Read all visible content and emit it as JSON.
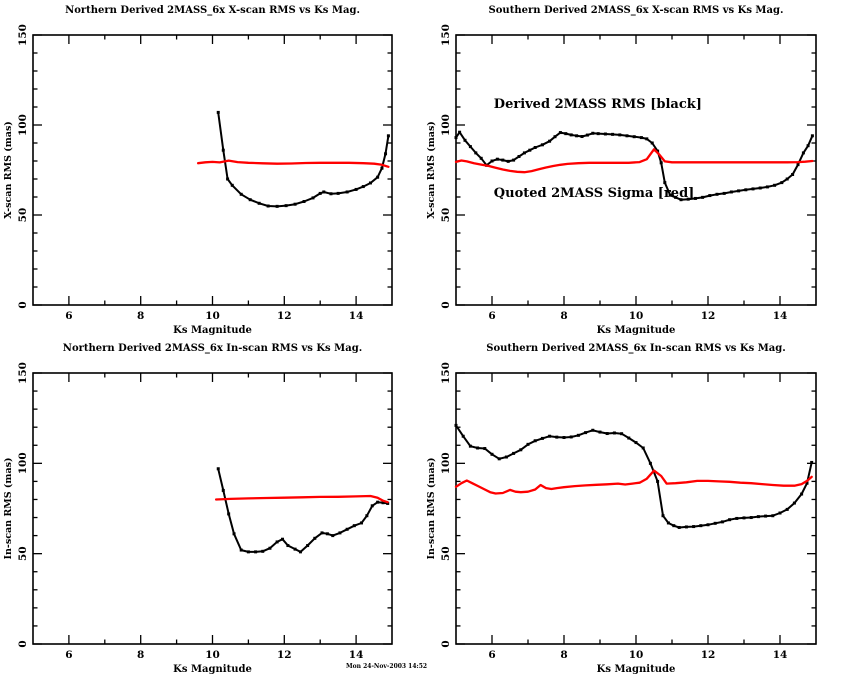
{
  "page": {
    "background": "#ffffff",
    "timestamp": "Mon 24-Nov-2003 14:52"
  },
  "legend": {
    "black_series_label": "Derived 2MASS RMS [black]",
    "red_series_label": "Quoted 2MASS Sigma [red]"
  },
  "colors": {
    "derived_rms": "#000000",
    "quoted_sigma": "#ff0000",
    "axis": "#000000"
  },
  "chart_data": [
    {
      "type": "line",
      "title": "Northern Derived 2MASS_6x X-scan RMS vs Ks Mag.",
      "xlabel": "Ks Magnitude",
      "ylabel": "X-scan RMS (mas)",
      "xlim": [
        5,
        15
      ],
      "ylim": [
        0,
        150
      ],
      "xticks": [
        6,
        8,
        10,
        12,
        14
      ],
      "xticks_minor": [
        7,
        9,
        11,
        13
      ],
      "yticks": [
        0,
        50,
        100,
        150
      ],
      "yticks_minor": [
        10,
        20,
        30,
        40,
        60,
        70,
        80,
        90,
        110,
        120,
        130,
        140
      ],
      "grid": false,
      "annotations": [],
      "series": [
        {
          "name": "Derived 2MASS RMS",
          "color": "#000000",
          "markers": true,
          "x": [
            10.16,
            10.3,
            10.42,
            10.55,
            10.8,
            11.05,
            11.3,
            11.55,
            11.8,
            12.05,
            12.3,
            12.55,
            12.8,
            13.0,
            13.1,
            13.3,
            13.5,
            13.75,
            14.0,
            14.2,
            14.4,
            14.6,
            14.72,
            14.82,
            14.9
          ],
          "y": [
            107,
            86,
            70,
            66.5,
            61.5,
            58.5,
            56.5,
            55,
            54.8,
            55.2,
            56,
            57.5,
            59.5,
            62,
            62.8,
            61.8,
            62,
            62.8,
            64.2,
            65.8,
            67.8,
            71,
            76,
            84,
            94
          ]
        },
        {
          "name": "Quoted 2MASS Sigma",
          "color": "#ff0000",
          "markers": false,
          "x": [
            9.6,
            9.8,
            10.0,
            10.2,
            10.45,
            10.7,
            11.0,
            11.4,
            11.8,
            12.2,
            12.6,
            13.0,
            13.4,
            13.8,
            14.2,
            14.5,
            14.7,
            14.9
          ],
          "y": [
            78.8,
            79.3,
            79.5,
            79.2,
            80.2,
            79.4,
            79,
            78.7,
            78.5,
            78.6,
            78.9,
            79,
            79,
            79,
            78.8,
            78.5,
            78,
            76.8
          ]
        }
      ]
    },
    {
      "type": "line",
      "title": "Southern Derived 2MASS_6x X-scan RMS vs Ks Mag.",
      "xlabel": "Ks Magnitude",
      "ylabel": "X-scan RMS (mas)",
      "xlim": [
        5,
        15
      ],
      "ylim": [
        0,
        150
      ],
      "xticks": [
        6,
        8,
        10,
        12,
        14
      ],
      "xticks_minor": [
        7,
        9,
        11,
        13
      ],
      "yticks": [
        0,
        50,
        100,
        150
      ],
      "yticks_minor": [
        10,
        20,
        30,
        40,
        60,
        70,
        80,
        90,
        110,
        120,
        130,
        140
      ],
      "grid": false,
      "annotations": [
        {
          "text": "Derived 2MASS RMS [black]",
          "x": 6.05,
          "y": 109.5
        },
        {
          "text": "Quoted 2MASS Sigma [red]",
          "x": 6.05,
          "y": 60
        }
      ],
      "series": [
        {
          "name": "Derived 2MASS RMS",
          "color": "#000000",
          "markers": true,
          "x": [
            5.0,
            5.1,
            5.25,
            5.4,
            5.55,
            5.7,
            5.85,
            6.0,
            6.15,
            6.3,
            6.45,
            6.6,
            6.75,
            6.9,
            7.05,
            7.2,
            7.4,
            7.6,
            7.75,
            7.9,
            8.05,
            8.2,
            8.35,
            8.5,
            8.65,
            8.8,
            8.95,
            9.15,
            9.35,
            9.55,
            9.75,
            9.95,
            10.15,
            10.3,
            10.45,
            10.6,
            10.7,
            10.8,
            10.95,
            11.1,
            11.25,
            11.45,
            11.65,
            11.85,
            12.05,
            12.25,
            12.45,
            12.65,
            12.85,
            13.05,
            13.25,
            13.45,
            13.65,
            13.85,
            14.05,
            14.2,
            14.35,
            14.5,
            14.65,
            14.78,
            14.9
          ],
          "y": [
            93,
            96,
            91.5,
            88,
            84.5,
            81.5,
            77.6,
            80,
            81,
            80.5,
            79.8,
            80.5,
            82.5,
            84.5,
            86,
            87.5,
            89,
            91,
            93.5,
            95.8,
            95.2,
            94.5,
            94,
            93.6,
            94.4,
            95.4,
            95.2,
            95,
            94.8,
            94.5,
            94,
            93.5,
            93,
            92.3,
            90,
            85.5,
            79,
            68,
            61,
            59.8,
            58.5,
            58.8,
            59.2,
            59.8,
            60.8,
            61.5,
            62,
            62.8,
            63.4,
            64,
            64.5,
            65,
            65.6,
            66.5,
            68,
            70,
            72.5,
            78,
            84.5,
            88.5,
            94
          ]
        },
        {
          "name": "Quoted 2MASS Sigma",
          "color": "#ff0000",
          "markers": false,
          "x": [
            5.0,
            5.15,
            5.3,
            5.5,
            5.7,
            5.9,
            6.1,
            6.3,
            6.5,
            6.7,
            6.9,
            7.1,
            7.3,
            7.5,
            7.7,
            7.9,
            8.1,
            8.4,
            8.7,
            9.0,
            9.4,
            9.8,
            10.1,
            10.3,
            10.5,
            10.65,
            10.8,
            11.0,
            11.4,
            11.8,
            12.2,
            12.6,
            13.0,
            13.4,
            13.8,
            14.2,
            14.5,
            14.7,
            14.9
          ],
          "y": [
            79.5,
            80.3,
            79.8,
            78.8,
            78,
            77.3,
            76.3,
            75.3,
            74.5,
            74,
            73.8,
            74.4,
            75.4,
            76.4,
            77.2,
            77.9,
            78.4,
            78.8,
            79,
            79,
            79,
            79,
            79.4,
            81,
            86.5,
            83.5,
            79.8,
            79.3,
            79.3,
            79.3,
            79.3,
            79.3,
            79.3,
            79.3,
            79.3,
            79.3,
            79.4,
            79.6,
            80
          ]
        }
      ]
    },
    {
      "type": "line",
      "title": "Northern Derived 2MASS_6x In-scan RMS vs Ks Mag.",
      "xlabel": "Ks Magnitude",
      "ylabel": "In-scan RMS (mas)",
      "xlim": [
        5,
        15
      ],
      "ylim": [
        0,
        150
      ],
      "xticks": [
        6,
        8,
        10,
        12,
        14
      ],
      "xticks_minor": [
        7,
        9,
        11,
        13
      ],
      "yticks": [
        0,
        50,
        100,
        150
      ],
      "yticks_minor": [
        10,
        20,
        30,
        40,
        60,
        70,
        80,
        90,
        110,
        120,
        130,
        140
      ],
      "grid": false,
      "annotations": [],
      "series": [
        {
          "name": "Derived 2MASS RMS",
          "color": "#000000",
          "markers": true,
          "x": [
            10.16,
            10.3,
            10.45,
            10.6,
            10.8,
            11.0,
            11.2,
            11.4,
            11.6,
            11.8,
            11.95,
            12.1,
            12.3,
            12.45,
            12.65,
            12.85,
            13.05,
            13.2,
            13.35,
            13.55,
            13.75,
            13.95,
            14.15,
            14.3,
            14.45,
            14.6,
            14.75,
            14.88
          ],
          "y": [
            97,
            85,
            72,
            61,
            52,
            51,
            51,
            51.3,
            53,
            56.5,
            58,
            54.5,
            52.5,
            51,
            54.5,
            58.5,
            61.5,
            61,
            60,
            61.5,
            63.5,
            65.5,
            67,
            71,
            76.5,
            78.5,
            78.2,
            77.8
          ]
        },
        {
          "name": "Quoted 2MASS Sigma",
          "color": "#ff0000",
          "markers": false,
          "x": [
            10.1,
            10.5,
            11.0,
            11.5,
            12.0,
            12.5,
            13.0,
            13.5,
            14.0,
            14.4,
            14.6,
            14.75,
            14.88
          ],
          "y": [
            80,
            80.3,
            80.6,
            80.8,
            81,
            81.2,
            81.4,
            81.5,
            81.7,
            81.9,
            81,
            79.3,
            78.5
          ]
        }
      ]
    },
    {
      "type": "line",
      "title": "Southern Derived 2MASS_6x In-scan RMS vs Ks Mag.",
      "xlabel": "Ks Magnitude",
      "ylabel": "In-scan RMS (mas)",
      "xlim": [
        5,
        15
      ],
      "ylim": [
        0,
        150
      ],
      "xticks": [
        6,
        8,
        10,
        12,
        14
      ],
      "xticks_minor": [
        7,
        9,
        11,
        13
      ],
      "yticks": [
        0,
        50,
        100,
        150
      ],
      "yticks_minor": [
        10,
        20,
        30,
        40,
        60,
        70,
        80,
        90,
        110,
        120,
        130,
        140
      ],
      "grid": false,
      "annotations": [],
      "series": [
        {
          "name": "Derived 2MASS RMS",
          "color": "#000000",
          "markers": true,
          "x": [
            5.0,
            5.2,
            5.4,
            5.6,
            5.8,
            6.0,
            6.2,
            6.4,
            6.6,
            6.8,
            7.0,
            7.2,
            7.4,
            7.6,
            7.8,
            8.0,
            8.2,
            8.4,
            8.6,
            8.8,
            9.0,
            9.2,
            9.4,
            9.6,
            9.8,
            10.0,
            10.2,
            10.4,
            10.6,
            10.75,
            10.9,
            11.05,
            11.2,
            11.4,
            11.6,
            11.8,
            12.0,
            12.2,
            12.4,
            12.6,
            12.8,
            13.0,
            13.2,
            13.4,
            13.6,
            13.8,
            14.0,
            14.2,
            14.4,
            14.6,
            14.75,
            14.88
          ],
          "y": [
            121,
            115,
            109.5,
            108.5,
            108.2,
            105,
            102.5,
            103.5,
            105.5,
            107.5,
            110.5,
            112.5,
            113.8,
            115,
            114.5,
            114.3,
            114.6,
            115.5,
            117,
            118.3,
            117.3,
            116.5,
            116.8,
            116.4,
            114,
            111.5,
            108.5,
            100,
            90,
            71,
            67,
            65.5,
            64.5,
            64.8,
            65,
            65.5,
            66,
            66.8,
            67.6,
            68.8,
            69.5,
            69.8,
            70,
            70.5,
            70.8,
            71,
            72.5,
            74.5,
            78,
            83,
            89,
            100.5
          ]
        },
        {
          "name": "Quoted 2MASS Sigma",
          "color": "#ff0000",
          "markers": false,
          "x": [
            5.0,
            5.15,
            5.3,
            5.45,
            5.6,
            5.8,
            5.95,
            6.1,
            6.3,
            6.5,
            6.65,
            6.8,
            7.0,
            7.2,
            7.35,
            7.5,
            7.65,
            7.8,
            8.0,
            8.3,
            8.6,
            8.9,
            9.2,
            9.5,
            9.7,
            9.9,
            10.1,
            10.3,
            10.5,
            10.7,
            10.85,
            11.1,
            11.4,
            11.7,
            12.0,
            12.3,
            12.6,
            12.9,
            13.2,
            13.5,
            13.8,
            14.1,
            14.4,
            14.6,
            14.75,
            14.88
          ],
          "y": [
            87,
            89,
            90.5,
            89,
            87.5,
            85.5,
            84,
            83.3,
            83.6,
            85.3,
            84.3,
            84,
            84.3,
            85.5,
            88,
            86.3,
            85.8,
            86.3,
            86.8,
            87.4,
            87.8,
            88.1,
            88.4,
            88.8,
            88.3,
            88.8,
            89.3,
            91.5,
            96,
            93,
            88.8,
            89,
            89.5,
            90.3,
            90.3,
            90,
            89.8,
            89.3,
            89,
            88.5,
            88,
            87.6,
            87.6,
            88.5,
            90.3,
            92.5
          ]
        }
      ]
    }
  ]
}
